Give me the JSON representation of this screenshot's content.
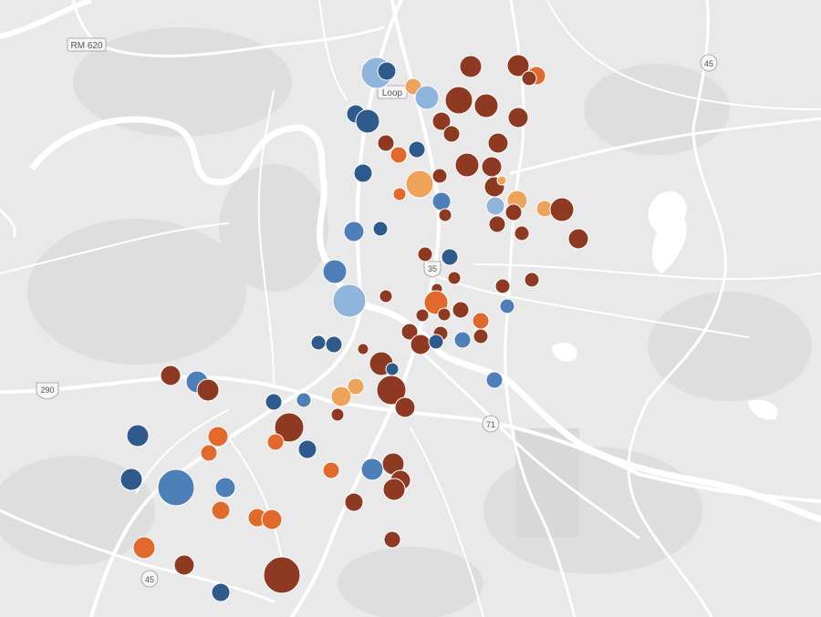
{
  "map": {
    "road_labels": {
      "rm620": "RM 620",
      "loop": "Loop",
      "i35": "35",
      "sh45_north": "45",
      "us290": "290",
      "sh71": "71",
      "sh45_south": "45"
    },
    "legend_colors": {
      "dark_red": "#8e3a22",
      "orange": "#e1692b",
      "light_orange": "#eda45a",
      "dark_blue": "#2f5b8c",
      "medium_blue": "#4f7fb9",
      "light_blue": "#8fb5dc"
    },
    "base_colors": {
      "land": "#e9e9e9",
      "water": "#ffffff",
      "roads": "#ffffff",
      "parks": "#dedede"
    }
  }
}
